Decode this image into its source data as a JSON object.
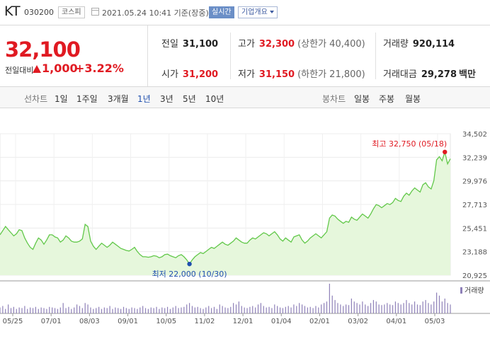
{
  "stock": {
    "name": "KT",
    "code": "030200",
    "market": "코스피",
    "date": "2021.05.24 10:41 기준(장중)",
    "realtime_label": "실시간",
    "info_label": "기업개요",
    "price": "32,100",
    "change_label": "전일대비",
    "change_value": "1,000",
    "change_percent": "+3.22%"
  },
  "stats": {
    "prev_close_label": "전일",
    "prev_close": "31,100",
    "high_label": "고가",
    "high": "32,300",
    "upper_limit": "(상한가 40,400)",
    "volume_label": "거래량",
    "volume": "920,114",
    "open_label": "시가",
    "open": "31,200",
    "low_label": "저가",
    "low": "31,150",
    "lower_limit": "(하한가 21,800)",
    "amount_label": "거래대금",
    "amount": "29,278",
    "amount_unit": "백만"
  },
  "tabs": {
    "line_chart_label": "선차트",
    "periods": [
      "1일",
      "1주일",
      "3개월",
      "1년",
      "3년",
      "5년",
      "10년"
    ],
    "selected_period": "1년",
    "candle_chart_label": "봉차트",
    "candles": [
      "일봉",
      "주봉",
      "월봉"
    ]
  },
  "chart_data": {
    "type": "area",
    "ylim": [
      20925,
      34502
    ],
    "y_ticks": [
      "34,502",
      "32,239",
      "29,976",
      "27,713",
      "25,451",
      "23,188",
      "20,925"
    ],
    "x_ticks": [
      "05/25",
      "07/01",
      "08/03",
      "09/01",
      "10/05",
      "11/02",
      "12/01",
      "01/04",
      "02/01",
      "03/02",
      "04/01",
      "05/03"
    ],
    "high_annotation": "최고 32,750 (05/18)",
    "low_annotation": "최저 22,000 (10/30)",
    "volume_label": "거래량",
    "colors": {
      "line": "#62c84a",
      "fill": "#e6f7dc",
      "high": "#e01a22",
      "low": "#1f4fae"
    },
    "price": [
      24800,
      25200,
      25600,
      25300,
      25000,
      24700,
      24900,
      25300,
      25200,
      24500,
      24000,
      23600,
      23400,
      24000,
      24500,
      24300,
      23900,
      24300,
      24800,
      24800,
      24600,
      24500,
      24100,
      24300,
      24700,
      24500,
      24200,
      24100,
      24100,
      24200,
      24400,
      25800,
      25600,
      24200,
      23700,
      23400,
      23700,
      24000,
      23800,
      23600,
      23800,
      24100,
      23900,
      23700,
      23500,
      23400,
      23300,
      23250,
      23400,
      23600,
      23200,
      22900,
      22700,
      22700,
      22650,
      22700,
      22800,
      22750,
      22600,
      22700,
      22900,
      22950,
      22800,
      22700,
      22600,
      22800,
      22900,
      22700,
      22400,
      22000,
      22400,
      22700,
      22900,
      23100,
      23000,
      23200,
      23400,
      23600,
      23500,
      23700,
      23900,
      24100,
      23900,
      23800,
      24000,
      24200,
      24500,
      24300,
      24100,
      24000,
      24000,
      24300,
      24500,
      24400,
      24600,
      24800,
      25000,
      24900,
      24700,
      24900,
      25100,
      24800,
      24400,
      24200,
      24500,
      24300,
      24100,
      24600,
      24700,
      24800,
      24300,
      24000,
      24200,
      24500,
      24700,
      24900,
      24700,
      24500,
      24800,
      25100,
      26400,
      26700,
      26600,
      26300,
      26100,
      25900,
      26100,
      26000,
      26500,
      26300,
      26200,
      26500,
      26800,
      26600,
      26400,
      26800,
      27300,
      27700,
      27600,
      27400,
      27600,
      27800,
      27700,
      27900,
      28300,
      28100,
      28000,
      28500,
      28800,
      28600,
      29000,
      29300,
      29100,
      28900,
      29600,
      29800,
      29400,
      29200,
      30000,
      32000,
      32300,
      31900,
      32750,
      31600,
      32100
    ],
    "volume_rel": [
      0.2,
      0.25,
      0.15,
      0.3,
      0.18,
      0.22,
      0.15,
      0.2,
      0.18,
      0.25,
      0.15,
      0.2,
      0.18,
      0.22,
      0.15,
      0.2,
      0.18,
      0.15,
      0.22,
      0.2,
      0.18,
      0.15,
      0.2,
      0.35,
      0.18,
      0.22,
      0.15,
      0.2,
      0.3,
      0.25,
      0.18,
      0.35,
      0.3,
      0.2,
      0.15,
      0.18,
      0.22,
      0.15,
      0.2,
      0.18,
      0.25,
      0.15,
      0.2,
      0.18,
      0.15,
      0.22,
      0.18,
      0.15,
      0.2,
      0.18,
      0.15,
      0.2,
      0.25,
      0.18,
      0.15,
      0.2,
      0.18,
      0.22,
      0.15,
      0.2,
      0.18,
      0.22,
      0.15,
      0.2,
      0.25,
      0.18,
      0.2,
      0.22,
      0.3,
      0.35,
      0.25,
      0.2,
      0.22,
      0.18,
      0.15,
      0.2,
      0.25,
      0.18,
      0.22,
      0.15,
      0.3,
      0.25,
      0.2,
      0.18,
      0.22,
      0.35,
      0.3,
      0.4,
      0.25,
      0.2,
      0.18,
      0.22,
      0.25,
      0.2,
      0.3,
      0.35,
      0.25,
      0.2,
      0.22,
      0.18,
      0.3,
      0.25,
      0.2,
      0.18,
      0.22,
      0.25,
      0.2,
      0.3,
      0.25,
      0.35,
      0.3,
      0.25,
      0.2,
      0.22,
      0.18,
      0.25,
      0.2,
      0.3,
      0.35,
      0.4,
      1.0,
      0.6,
      0.45,
      0.35,
      0.3,
      0.25,
      0.3,
      0.28,
      0.5,
      0.4,
      0.35,
      0.3,
      0.4,
      0.3,
      0.25,
      0.35,
      0.45,
      0.4,
      0.3,
      0.28,
      0.3,
      0.35,
      0.3,
      0.28,
      0.4,
      0.35,
      0.3,
      0.35,
      0.45,
      0.35,
      0.3,
      0.4,
      0.3,
      0.28,
      0.4,
      0.45,
      0.35,
      0.3,
      0.4,
      0.7,
      0.6,
      0.4,
      0.5,
      0.35,
      0.3
    ]
  }
}
